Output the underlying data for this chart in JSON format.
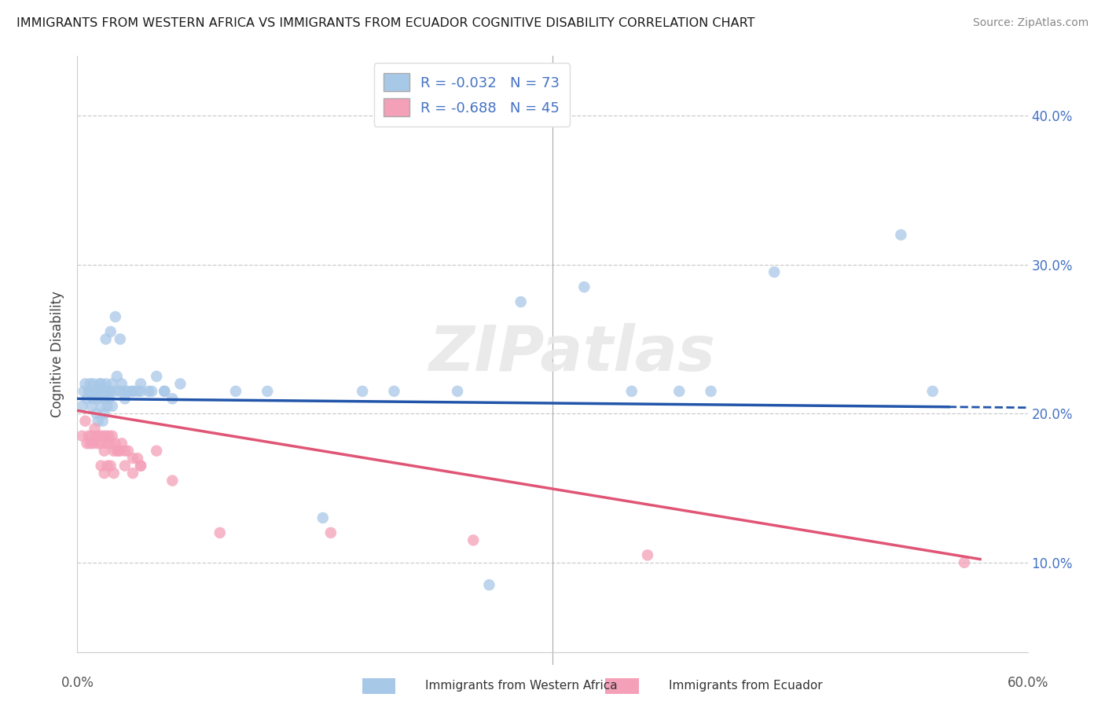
{
  "title": "IMMIGRANTS FROM WESTERN AFRICA VS IMMIGRANTS FROM ECUADOR COGNITIVE DISABILITY CORRELATION CHART",
  "source": "Source: ZipAtlas.com",
  "ylabel": "Cognitive Disability",
  "xlim": [
    0.0,
    0.6
  ],
  "ylim": [
    0.04,
    0.44
  ],
  "blue_R": -0.032,
  "blue_N": 73,
  "pink_R": -0.688,
  "pink_N": 45,
  "blue_color": "#a8c8e8",
  "pink_color": "#f4a0b8",
  "blue_line_color": "#2255aa",
  "pink_line_color": "#e05575",
  "legend_labels": [
    "Immigrants from Western Africa",
    "Immigrants from Ecuador"
  ],
  "blue_x": [
    0.003,
    0.004,
    0.005,
    0.006,
    0.007,
    0.008,
    0.009,
    0.01,
    0.011,
    0.012,
    0.013,
    0.014,
    0.015,
    0.016,
    0.017,
    0.018,
    0.019,
    0.02,
    0.021,
    0.022,
    0.013,
    0.015,
    0.017,
    0.019,
    0.014,
    0.016,
    0.018,
    0.02,
    0.022,
    0.024,
    0.025,
    0.027,
    0.028,
    0.03,
    0.032,
    0.035,
    0.038,
    0.04,
    0.045,
    0.05,
    0.055,
    0.06,
    0.065,
    0.015,
    0.018,
    0.021,
    0.024,
    0.027,
    0.008,
    0.01,
    0.012,
    0.014,
    0.016,
    0.03,
    0.035,
    0.04,
    0.047,
    0.055,
    0.1,
    0.12,
    0.18,
    0.2,
    0.24,
    0.35,
    0.4,
    0.155,
    0.26,
    0.28,
    0.32,
    0.44,
    0.52,
    0.54,
    0.38
  ],
  "blue_y": [
    0.205,
    0.215,
    0.22,
    0.21,
    0.215,
    0.22,
    0.205,
    0.21,
    0.215,
    0.2,
    0.21,
    0.215,
    0.22,
    0.195,
    0.21,
    0.215,
    0.205,
    0.21,
    0.215,
    0.205,
    0.195,
    0.205,
    0.2,
    0.215,
    0.22,
    0.215,
    0.22,
    0.215,
    0.22,
    0.215,
    0.225,
    0.215,
    0.22,
    0.21,
    0.215,
    0.215,
    0.215,
    0.22,
    0.215,
    0.225,
    0.215,
    0.21,
    0.22,
    0.215,
    0.25,
    0.255,
    0.265,
    0.25,
    0.215,
    0.22,
    0.215,
    0.215,
    0.215,
    0.215,
    0.215,
    0.215,
    0.215,
    0.215,
    0.215,
    0.215,
    0.215,
    0.215,
    0.215,
    0.215,
    0.215,
    0.13,
    0.085,
    0.275,
    0.285,
    0.295,
    0.32,
    0.215,
    0.215
  ],
  "pink_x": [
    0.003,
    0.005,
    0.006,
    0.007,
    0.008,
    0.009,
    0.01,
    0.011,
    0.012,
    0.013,
    0.014,
    0.015,
    0.016,
    0.017,
    0.018,
    0.019,
    0.02,
    0.021,
    0.022,
    0.023,
    0.024,
    0.025,
    0.026,
    0.027,
    0.028,
    0.03,
    0.032,
    0.035,
    0.038,
    0.04,
    0.015,
    0.017,
    0.019,
    0.021,
    0.023,
    0.03,
    0.035,
    0.04,
    0.05,
    0.06,
    0.09,
    0.16,
    0.25,
    0.36,
    0.56
  ],
  "pink_y": [
    0.185,
    0.195,
    0.18,
    0.185,
    0.18,
    0.185,
    0.18,
    0.19,
    0.185,
    0.18,
    0.185,
    0.18,
    0.185,
    0.175,
    0.185,
    0.18,
    0.185,
    0.18,
    0.185,
    0.175,
    0.18,
    0.175,
    0.175,
    0.175,
    0.18,
    0.175,
    0.175,
    0.17,
    0.17,
    0.165,
    0.165,
    0.16,
    0.165,
    0.165,
    0.16,
    0.165,
    0.16,
    0.165,
    0.175,
    0.155,
    0.12,
    0.12,
    0.115,
    0.105,
    0.1
  ]
}
